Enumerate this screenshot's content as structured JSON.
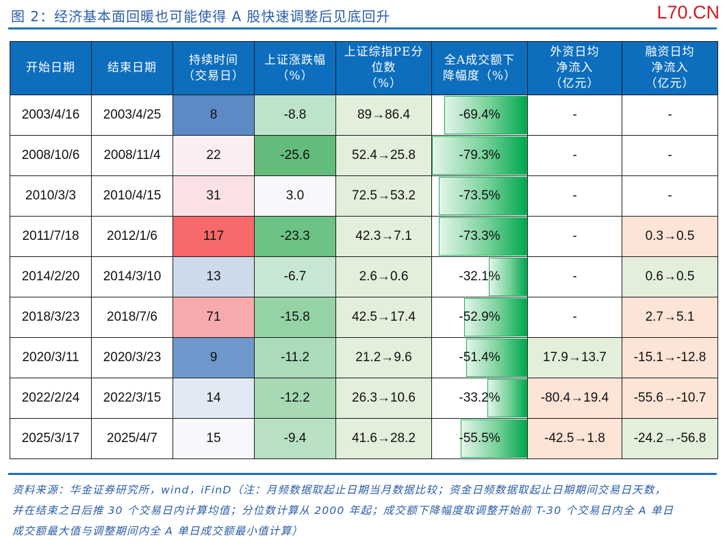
{
  "figure": {
    "title": "图 2：经济基本面回暖也可能使得 A 股快速调整后见底回升",
    "watermark": "L70.CN"
  },
  "table": {
    "headers": [
      [
        "开始日期"
      ],
      [
        "结束日期"
      ],
      [
        "持续时间",
        "（交易日）"
      ],
      [
        "上证涨跌幅",
        "（%）"
      ],
      [
        "上证综指PE分",
        "位数",
        "（%）"
      ],
      [
        "全A成交额下",
        "降幅度（%）"
      ],
      [
        "外资日均",
        "净流入",
        "（亿元）"
      ],
      [
        "融资日均",
        "净流入",
        "（亿元）"
      ]
    ],
    "rows": [
      {
        "start": "2003/4/16",
        "end": "2003/4/25",
        "days": "8",
        "sh_change": "-8.8",
        "pe_pct": "89→86.4",
        "turnover_drop": "-69.4%",
        "turnover_bar": 87,
        "foreign": "-",
        "margin": "-",
        "colors": {
          "days": "#5b8ac6",
          "sh_change": "#bde3c8",
          "pe_pct": "#e3eedb",
          "foreign": "#ffffff",
          "margin": "#ffffff"
        }
      },
      {
        "start": "2008/10/6",
        "end": "2008/11/4",
        "days": "22",
        "sh_change": "-25.6",
        "pe_pct": "52.4→25.8",
        "turnover_drop": "-79.3%",
        "turnover_bar": 100,
        "foreign": "-",
        "margin": "-",
        "colors": {
          "days": "#fbeef2",
          "sh_change": "#63bc7b",
          "pe_pct": "#e3eedb",
          "foreign": "#ffffff",
          "margin": "#ffffff"
        }
      },
      {
        "start": "2010/3/3",
        "end": "2010/4/15",
        "days": "31",
        "sh_change": "3.0",
        "pe_pct": "72.5→53.2",
        "turnover_drop": "-73.5%",
        "turnover_bar": 93,
        "foreign": "-",
        "margin": "-",
        "colors": {
          "days": "#f9e1e4",
          "sh_change": "#f8f8fc",
          "pe_pct": "#e3eedb",
          "foreign": "#ffffff",
          "margin": "#ffffff"
        }
      },
      {
        "start": "2011/7/18",
        "end": "2012/1/6",
        "days": "117",
        "sh_change": "-23.3",
        "pe_pct": "42.3→7.1",
        "turnover_drop": "-73.3%",
        "turnover_bar": 93,
        "foreign": "-",
        "margin": "0.3→0.5",
        "colors": {
          "days": "#f8696b",
          "sh_change": "#6dc286",
          "pe_pct": "#e3eedb",
          "foreign": "#ffffff",
          "margin": "#fce4d6"
        }
      },
      {
        "start": "2014/2/20",
        "end": "2014/3/10",
        "days": "13",
        "sh_change": "-6.7",
        "pe_pct": "2.6→0.6",
        "turnover_drop": "-32.1%",
        "turnover_bar": 40,
        "foreign": "-",
        "margin": "0.6→0.5",
        "colors": {
          "days": "#cddaeb",
          "sh_change": "#c8e7d2",
          "pe_pct": "#e3eedb",
          "foreign": "#ffffff",
          "margin": "#e3eedb"
        }
      },
      {
        "start": "2018/3/23",
        "end": "2018/7/6",
        "days": "71",
        "sh_change": "-15.8",
        "pe_pct": "42.5→17.4",
        "turnover_drop": "-52.9%",
        "turnover_bar": 66,
        "foreign": "-",
        "margin": "2.7→5.1",
        "colors": {
          "days": "#f7aaad",
          "sh_change": "#95d3a6",
          "pe_pct": "#e3eedb",
          "foreign": "#ffffff",
          "margin": "#fce4d6"
        }
      },
      {
        "start": "2020/3/11",
        "end": "2020/3/23",
        "days": "9",
        "sh_change": "-11.2",
        "pe_pct": "21.2→9.6",
        "turnover_drop": "-51.4%",
        "turnover_bar": 64,
        "foreign": "17.9→13.7",
        "margin": "-15.1→-12.8",
        "colors": {
          "days": "#6f99cc",
          "sh_change": "#acdbb9",
          "pe_pct": "#e3eedb",
          "foreign": "#e3eedb",
          "margin": "#fce4d6"
        }
      },
      {
        "start": "2022/2/24",
        "end": "2022/3/15",
        "days": "14",
        "sh_change": "-12.2",
        "pe_pct": "26.3→10.6",
        "turnover_drop": "-33.2%",
        "turnover_bar": 42,
        "foreign": "-80.4→19.4",
        "margin": "-55.6→-10.7",
        "colors": {
          "days": "#e1e9f4",
          "sh_change": "#a7d9b5",
          "pe_pct": "#e3eedb",
          "foreign": "#fce4d6",
          "margin": "#fce4d6"
        }
      },
      {
        "start": "2025/3/17",
        "end": "2025/4/7",
        "days": "15",
        "sh_change": "-9.4",
        "pe_pct": "41.6→28.2",
        "turnover_drop": "-55.5%",
        "turnover_bar": 70,
        "foreign": "-42.5→1.8",
        "margin": "-24.2→-56.8",
        "colors": {
          "days": "#f8f8fc",
          "sh_change": "#b8e1c4",
          "pe_pct": "#e3eedb",
          "foreign": "#fce4d6",
          "margin": "#e3eedb"
        }
      }
    ]
  },
  "colors": {
    "header_bg": "#0d6ebd",
    "rule": "#1f6fbf",
    "title_text": "#2a5ea8",
    "watermark": "#d21a1a",
    "bar_end": "#00a850"
  },
  "footnote": {
    "lines": [
      "资料来源：华金证券研究所，wind，iFinD（注：月频数据取起止日期当月数据比较；资金日频数据取起止日期期间交易日天数，",
      "并在结束之日后推 30 个交易日内计算均值；分位数计算从 2000 年起；成交额下降幅度取调整开始前 T-30 个交易日内全 A 单日",
      "成交额最大值与调整期间内全 A 单日成交额最小值计算）"
    ]
  }
}
